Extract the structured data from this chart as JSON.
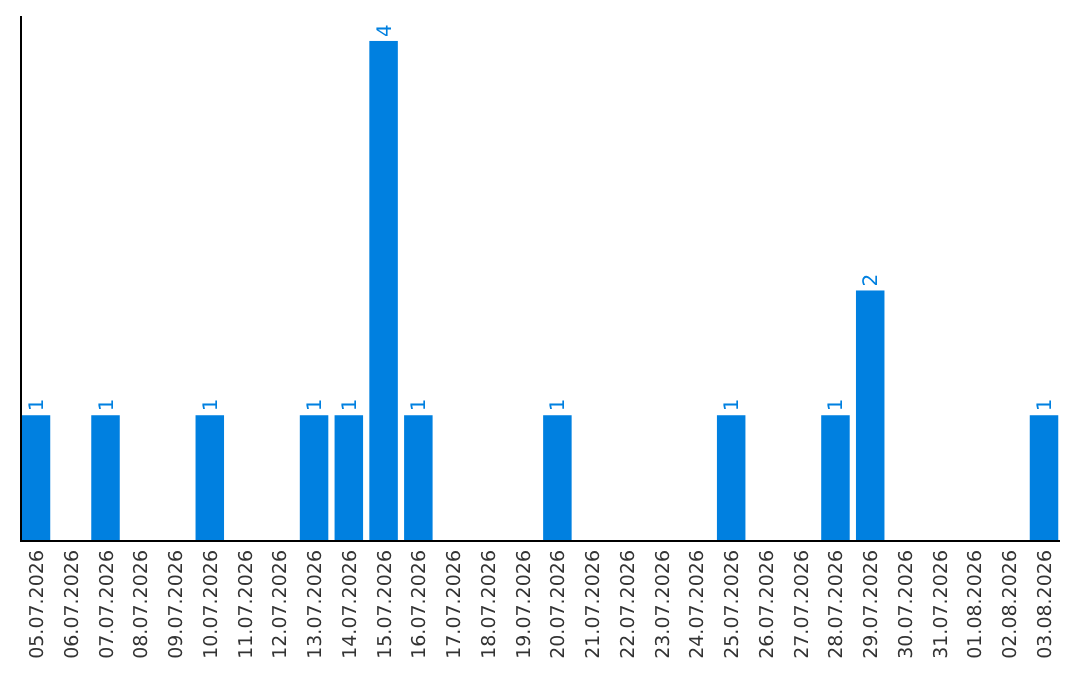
{
  "chart_data": {
    "type": "bar",
    "categories": [
      "05.07.2026",
      "06.07.2026",
      "07.07.2026",
      "08.07.2026",
      "09.07.2026",
      "10.07.2026",
      "11.07.2026",
      "12.07.2026",
      "13.07.2026",
      "14.07.2026",
      "15.07.2026",
      "16.07.2026",
      "17.07.2026",
      "18.07.2026",
      "19.07.2026",
      "20.07.2026",
      "21.07.2026",
      "22.07.2026",
      "23.07.2026",
      "24.07.2026",
      "25.07.2026",
      "26.07.2026",
      "27.07.2026",
      "28.07.2026",
      "29.07.2026",
      "30.07.2026",
      "31.07.2026",
      "01.08.2026",
      "02.08.2026",
      "03.08.2026"
    ],
    "values": [
      1,
      0,
      1,
      0,
      0,
      1,
      0,
      0,
      1,
      1,
      4,
      1,
      0,
      0,
      0,
      1,
      0,
      0,
      0,
      0,
      1,
      0,
      0,
      1,
      2,
      0,
      0,
      0,
      0,
      1
    ],
    "value_labels": [
      "1",
      null,
      "1",
      null,
      null,
      "1",
      null,
      null,
      "1",
      "1",
      "4",
      "1",
      null,
      null,
      null,
      "1",
      null,
      null,
      null,
      null,
      "1",
      null,
      null,
      "1",
      "2",
      null,
      null,
      null,
      null,
      "1"
    ],
    "color": "#0080e0",
    "tick_labels": "x"
  }
}
